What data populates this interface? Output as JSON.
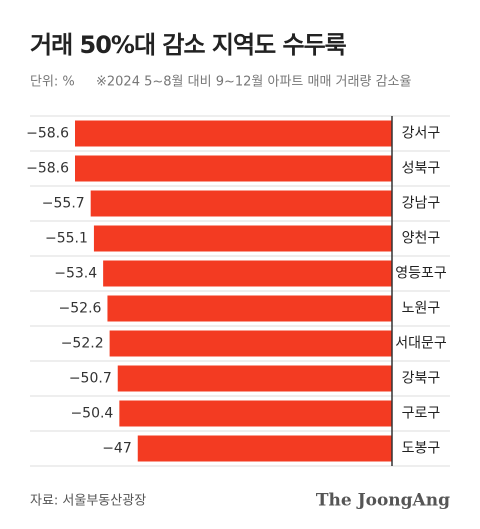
{
  "chart_data": {
    "type": "bar",
    "orientation": "horizontal",
    "title": "거래 50%대 감소 지역도 수두룩",
    "unit": "단위: %",
    "note": "※2024 5~8월 대비 9~12월 아파트 매매 거래량 감소율",
    "source": "자료: 서울부동산광장",
    "publisher": "The JoongAng",
    "color": "#f33b22",
    "categories": [
      "강서구",
      "성북구",
      "강남구",
      "양천구",
      "영등포구",
      "노원구",
      "서대문구",
      "강북구",
      "구로구",
      "도봉구"
    ],
    "values": [
      -58.6,
      -58.6,
      -55.7,
      -55.1,
      -53.4,
      -52.6,
      -52.2,
      -50.7,
      -50.4,
      -47
    ],
    "value_labels": [
      "−58.6",
      "−58.6",
      "−55.7",
      "−55.1",
      "−53.4",
      "−52.6",
      "−52.2",
      "−50.7",
      "−50.4",
      "−47"
    ]
  }
}
